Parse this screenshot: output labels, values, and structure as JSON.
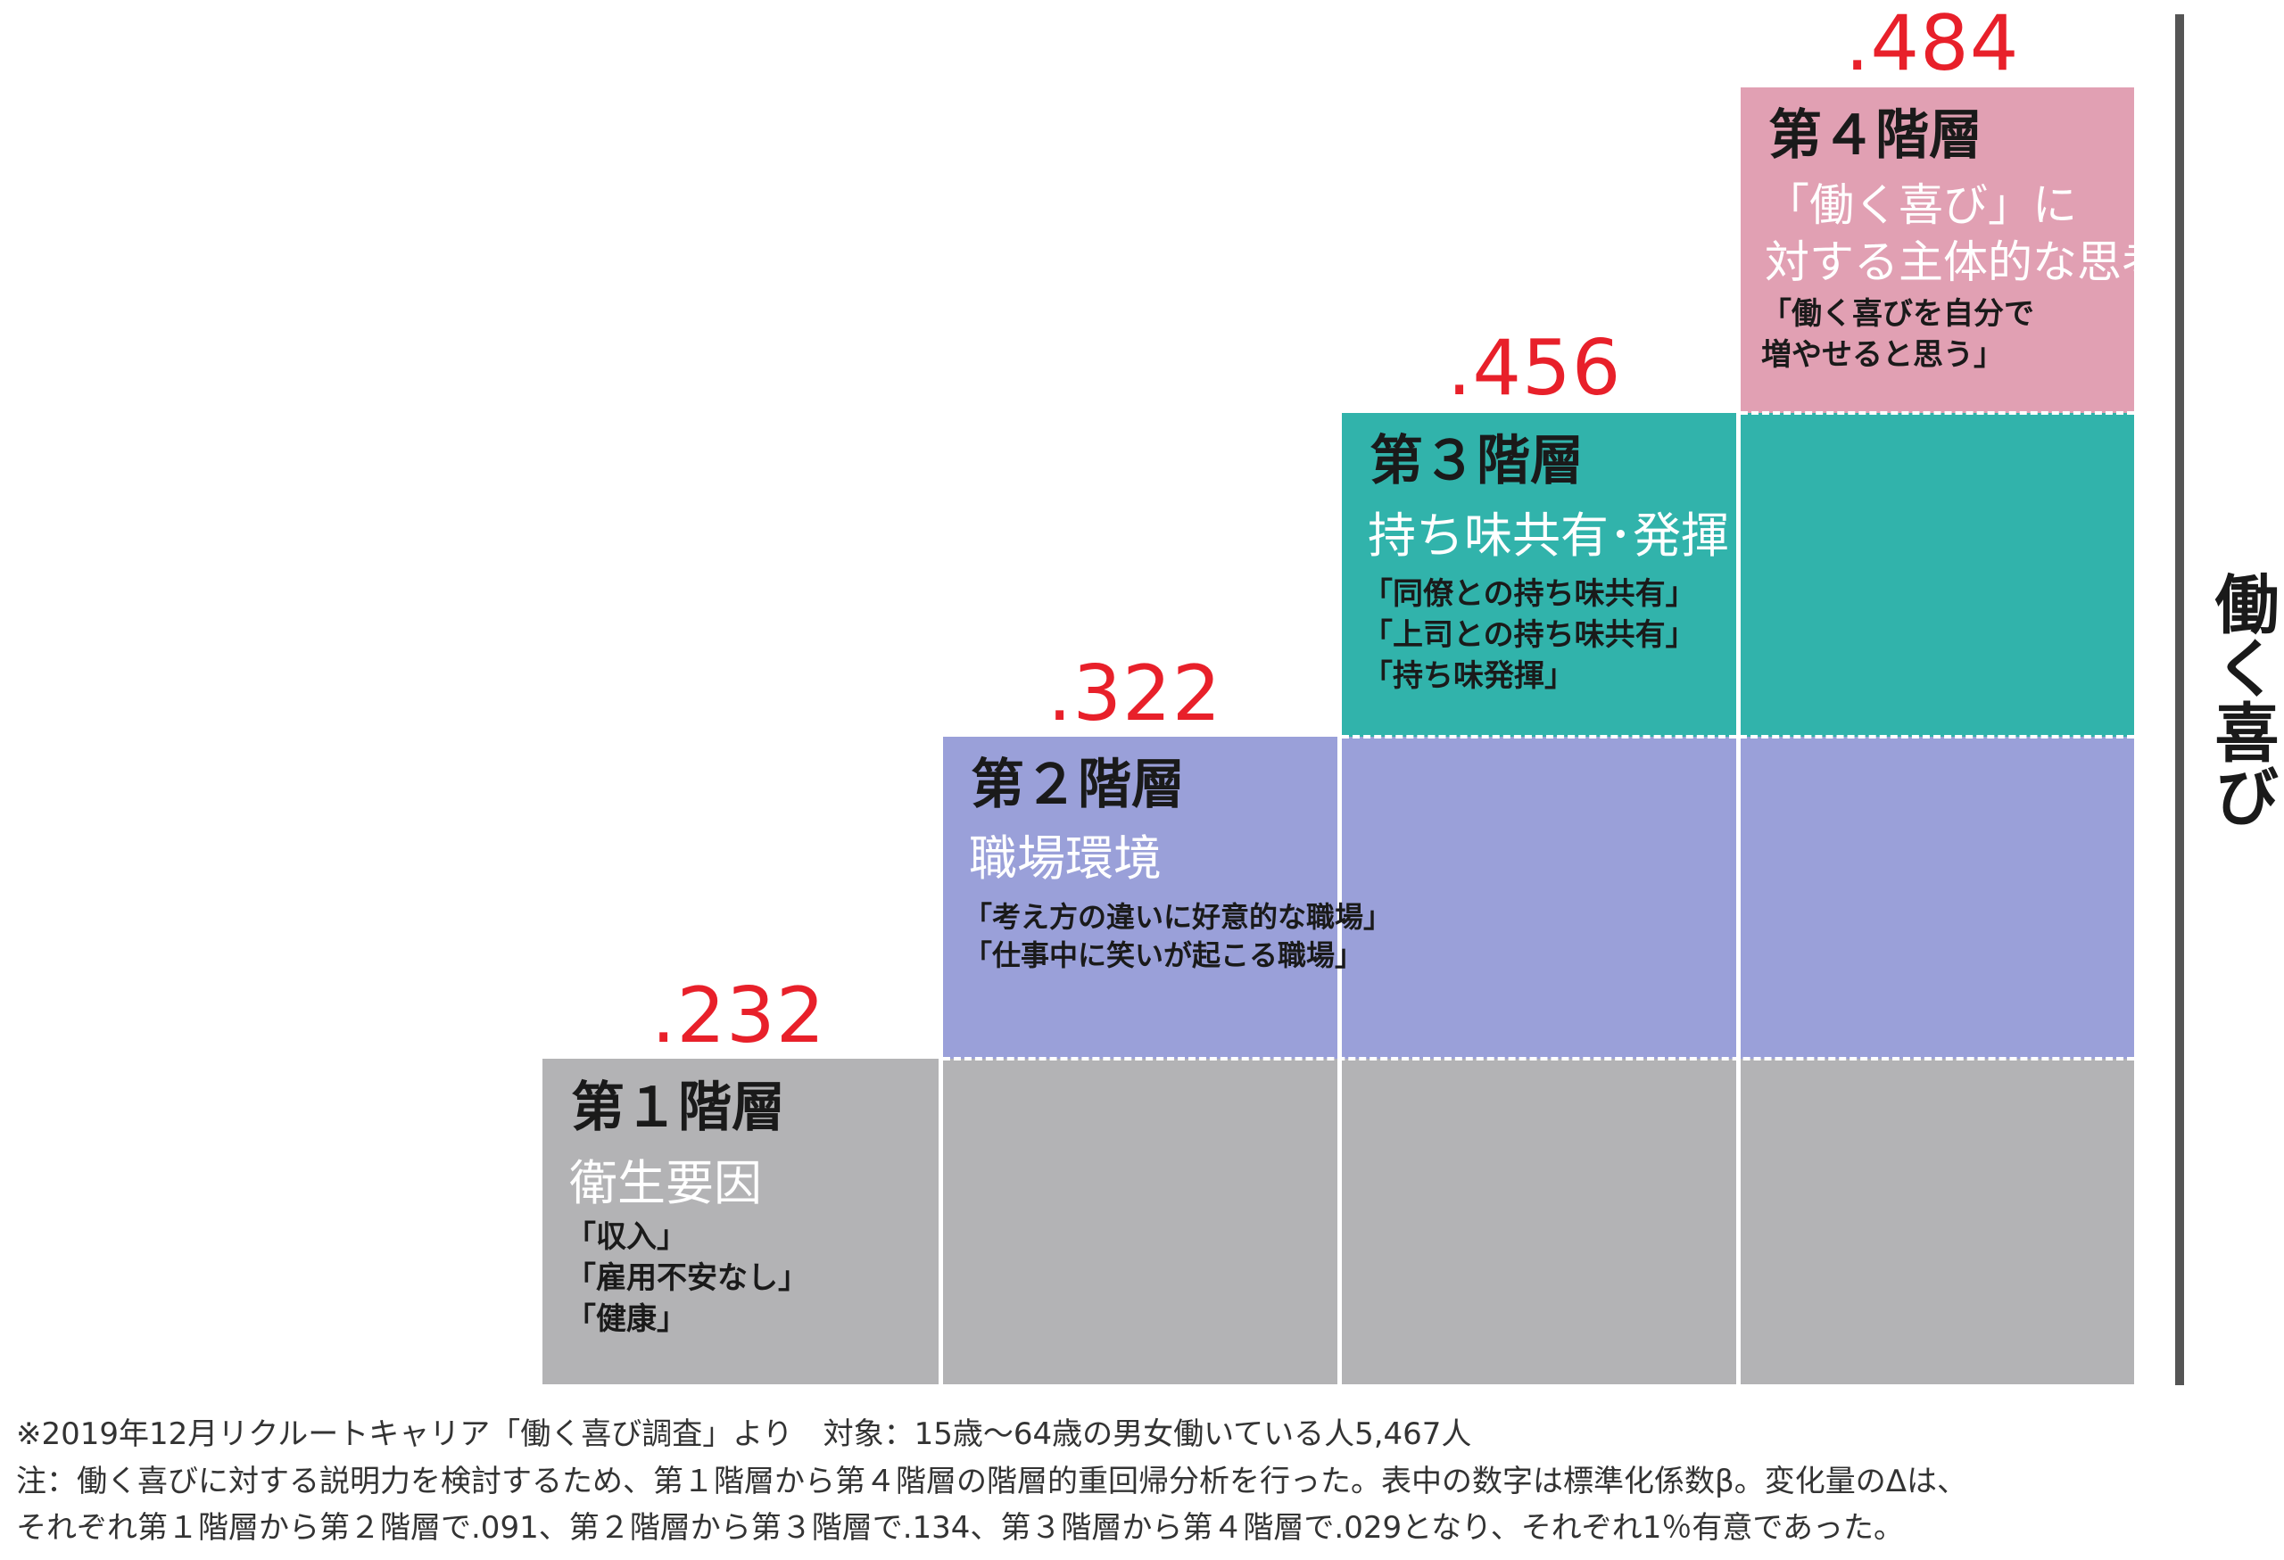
{
  "levels": [
    {
      "value": ".232",
      "title": "第１階層",
      "subtitle": "衛生要因",
      "items": [
        "「収入」",
        "「雇用不安なし」",
        "「健康」"
      ]
    },
    {
      "value": ".322",
      "title": "第２階層",
      "subtitle": "職場環境",
      "items": [
        "「考え方の違いに好意的な職場」",
        "「仕事中に笑いが起こる職場」"
      ]
    },
    {
      "value": ".456",
      "title": "第３階層",
      "subtitle": "持ち味共有･発揮",
      "items": [
        "「同僚との持ち味共有」",
        "「上司との持ち味共有」",
        "「持ち味発揮」"
      ]
    },
    {
      "value": ".484",
      "title": "第４階層",
      "subtitle": "「働く喜び」に\n対する主体的な思考",
      "items": [
        "「働く喜びを自分で",
        "増やせると思う」"
      ]
    }
  ],
  "axis_label": "働く喜び",
  "colors": {
    "level1": "#b3b3b5",
    "level2": "#9aa0d9",
    "level3": "#31b3ab",
    "level4": "#e1a0b3",
    "coefficient": "#e8202a"
  },
  "notes": [
    "※2019年12月リクルートキャリア「働く喜び調査」より　対象：15歳〜64歳の男女働いている人5,467人",
    "注：働く喜びに対する説明力を検討するため、第１階層から第４階層の階層的重回帰分析を行った。表中の数字は標準化係数β。変化量のΔは、",
    "それぞれ第１階層から第２階層で.091、第２階層から第３階層で.134、第３階層から第４階層で.029となり、それぞれ1％有意であった。"
  ]
}
